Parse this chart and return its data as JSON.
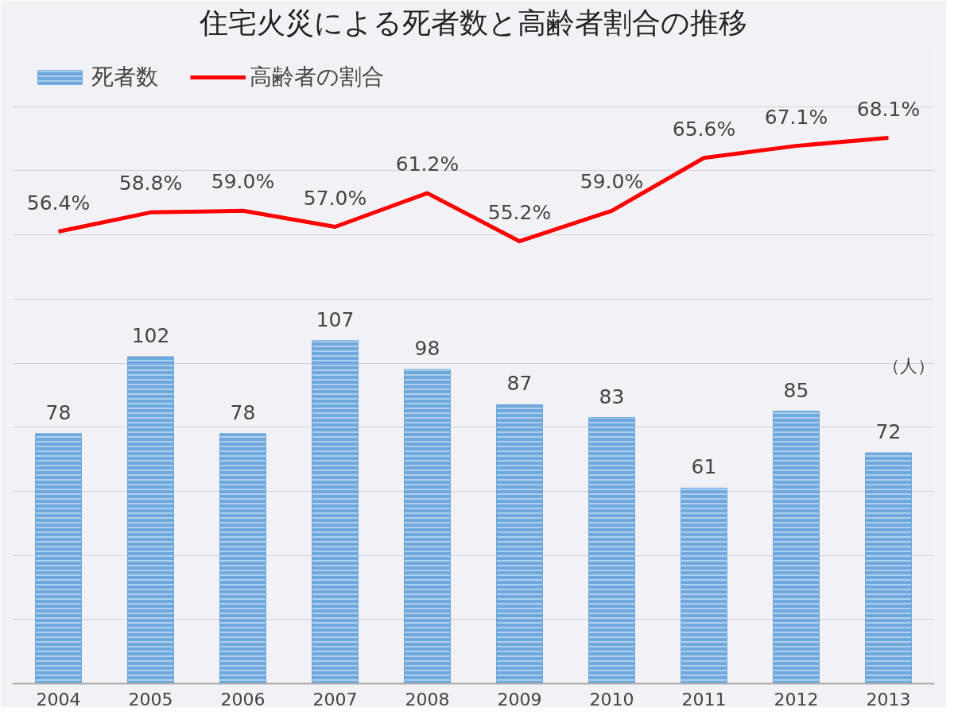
{
  "chart_data": {
    "type": "bar",
    "title": "住宅火災による死者数と高齢者割合の推移",
    "categories": [
      "2004",
      "2005",
      "2006",
      "2007",
      "2008",
      "2009",
      "2010",
      "2011",
      "2012",
      "2013"
    ],
    "series": [
      {
        "name": "死者数",
        "color": "#6fa8dc",
        "values": [
          78,
          102,
          78,
          107,
          98,
          87,
          83,
          61,
          85,
          72
        ],
        "value_labels": [
          "78",
          "102",
          "78",
          "107",
          "98",
          "87",
          "83",
          "61",
          "85",
          "72"
        ]
      },
      {
        "name": "高齢者の割合",
        "type": "line",
        "axis": "y2",
        "color": "#ff0000",
        "values": [
          56.4,
          58.8,
          59.0,
          57.0,
          61.2,
          55.2,
          59.0,
          65.6,
          67.1,
          68.1
        ],
        "value_labels": [
          "56.4%",
          "58.8%",
          "59.0%",
          "57.0%",
          "61.2%",
          "55.2%",
          "59.0%",
          "65.6%",
          "67.1%",
          "68.1%"
        ]
      }
    ],
    "ylim": [
      0,
      200
    ],
    "yticks": [
      {
        "value": 0,
        "label": null
      },
      {
        "value": 20,
        "label": null
      },
      {
        "value": 40,
        "label": null
      },
      {
        "value": 60,
        "label": null
      },
      {
        "value": 80,
        "label": null
      },
      {
        "value": 100,
        "label": null
      },
      {
        "value": 120,
        "label": null
      },
      {
        "value": 140,
        "label": null
      },
      {
        "value": 160,
        "label": null
      },
      {
        "value": 180,
        "label": null
      },
      {
        "value": 200,
        "label": null
      }
    ],
    "y2lim": [
      0,
      80
    ],
    "tick_labels": "x",
    "grid": "y",
    "legend": "top left",
    "marker": "none",
    "line_style": "solid",
    "annotations": [
      "（人）"
    ]
  }
}
